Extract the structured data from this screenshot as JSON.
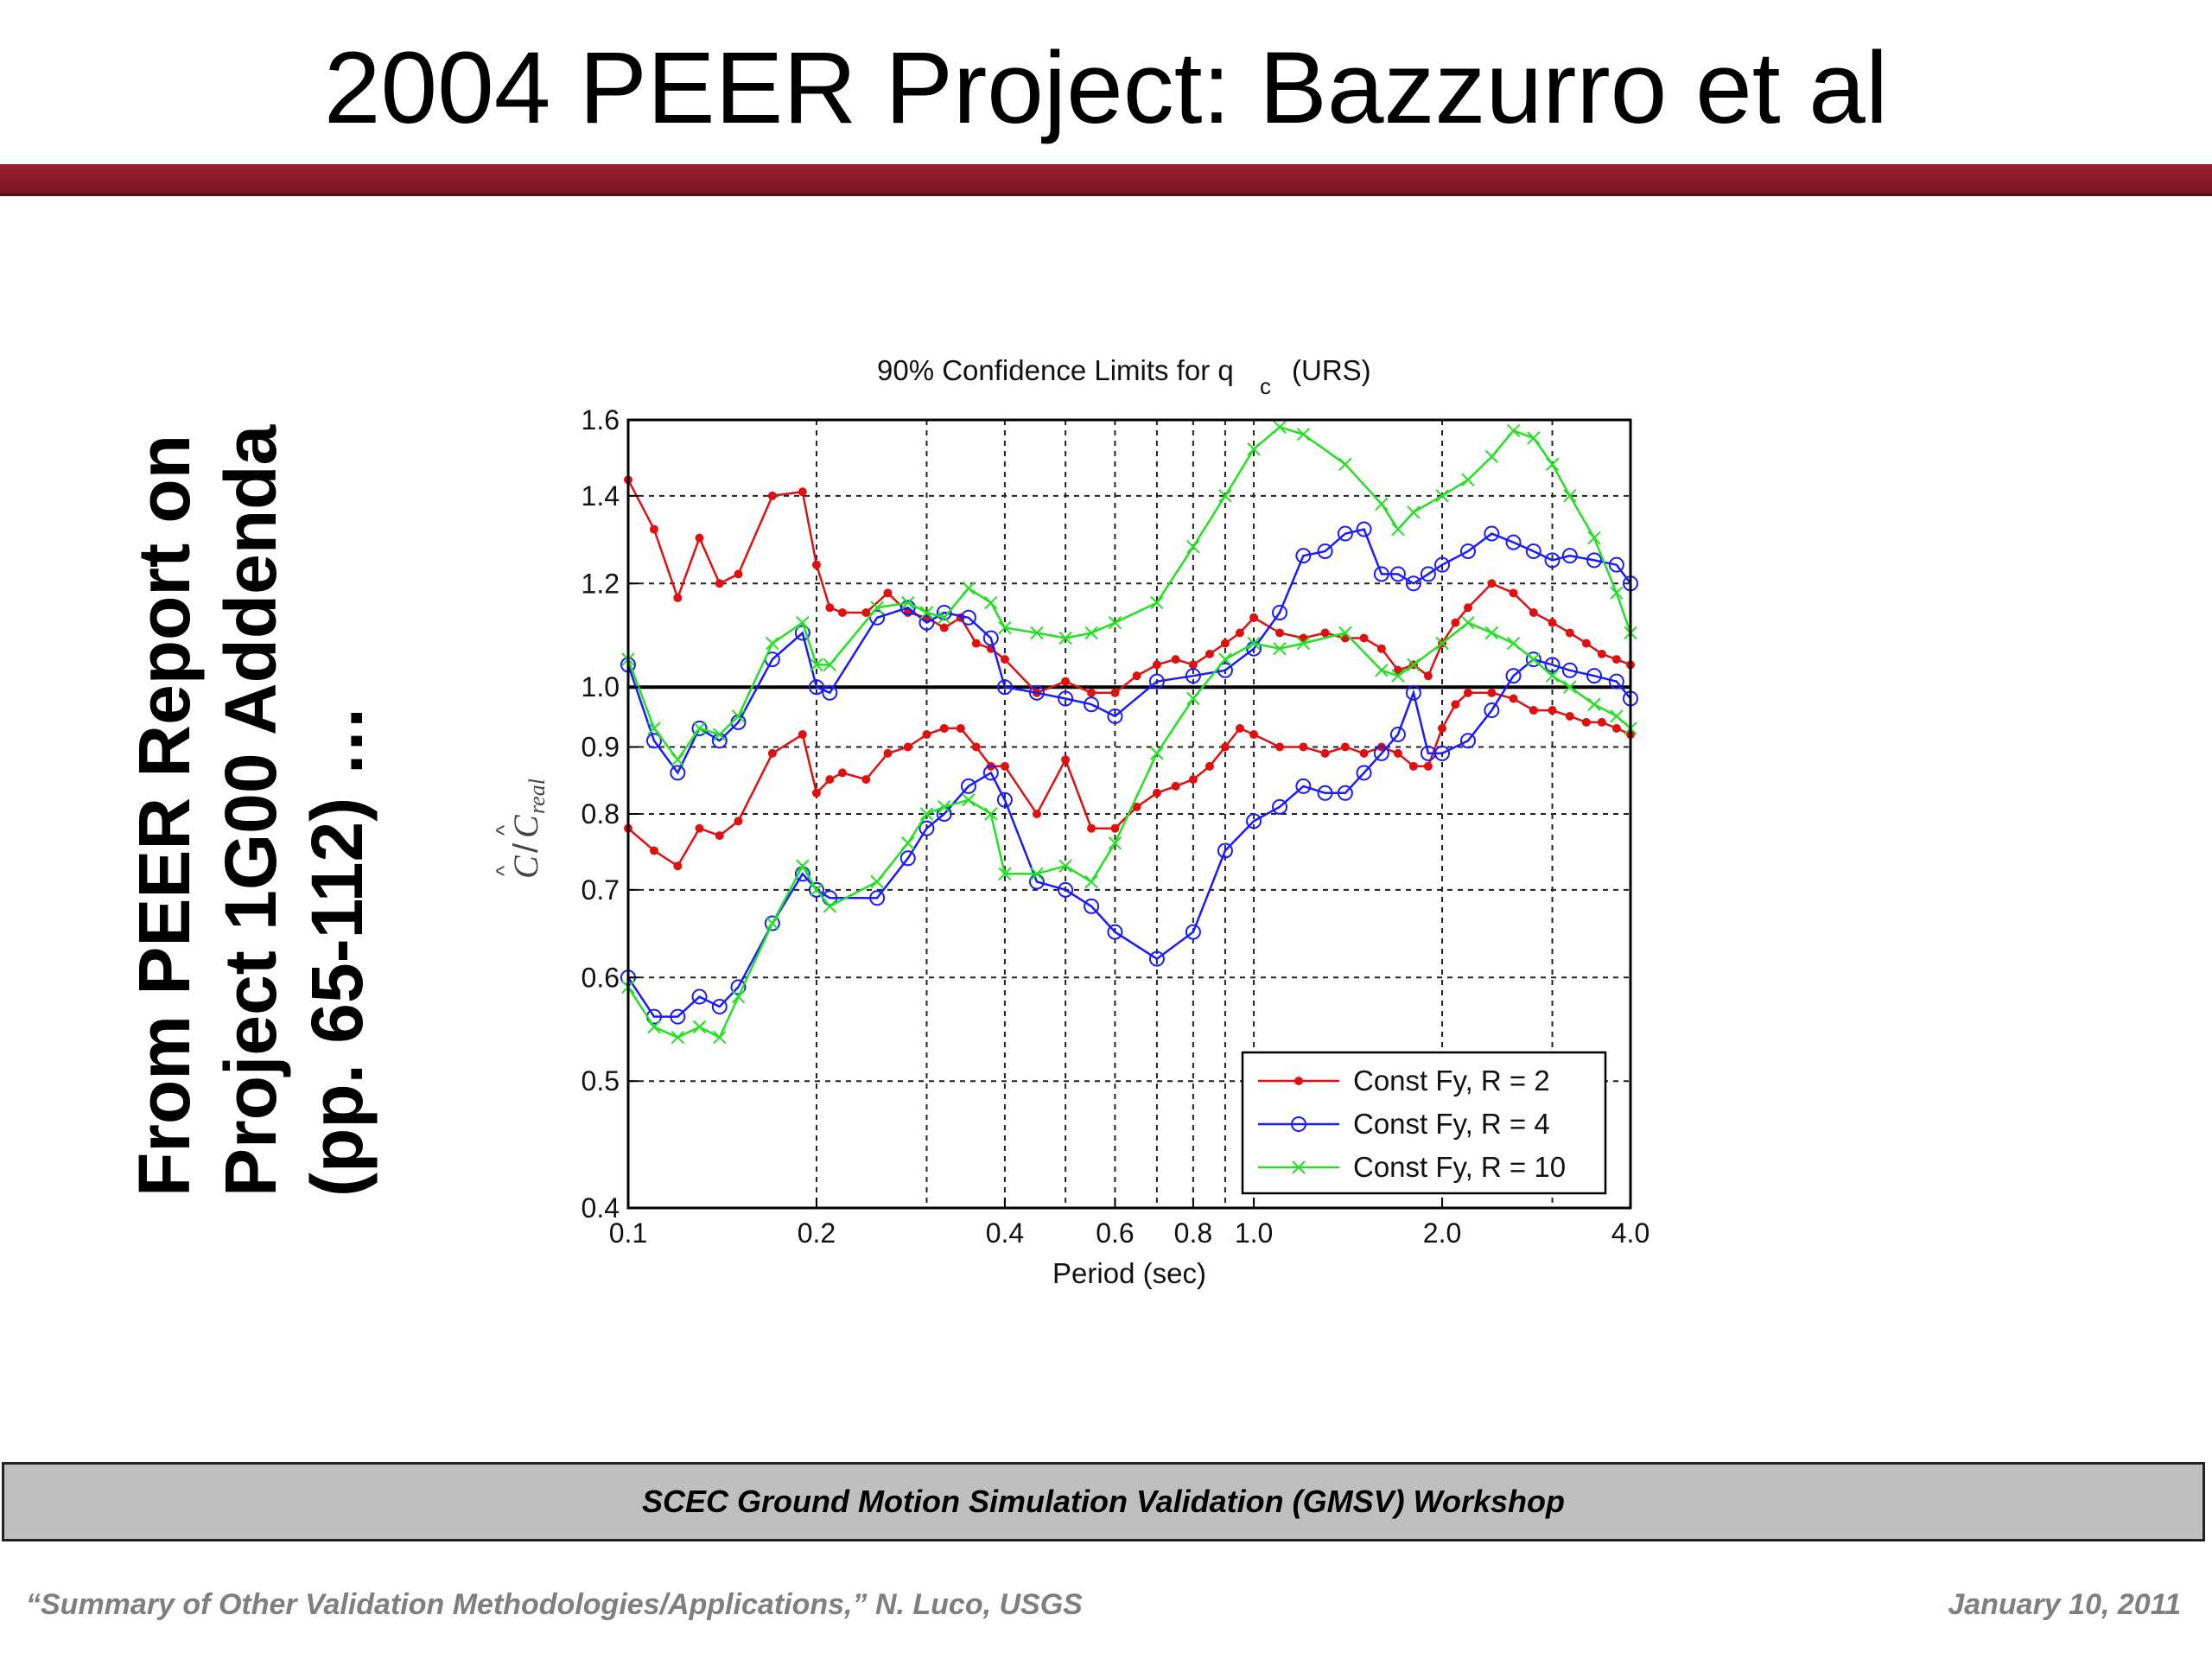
{
  "slide": {
    "title": "2004 PEER Project: Bazzurro et al",
    "side_note_lines": [
      "From PEER Report on",
      "Project 1G00 Addenda",
      "(pp. 65-112) …"
    ],
    "footer_banner": "SCEC Ground Motion Simulation Validation (GMSV) Workshop",
    "footer_left": "“Summary of Other Validation Methodologies/Applications,” N. Luco, USGS",
    "footer_right": "January 10, 2011",
    "accent_color": "#8b1a28"
  },
  "chart_data": {
    "type": "line",
    "title_main": "90% Confidence Limits for q",
    "title_sub": "c",
    "title_suffix": "(URS)",
    "xlabel": "Period (sec)",
    "ylabel_hat_c": "C",
    "ylabel_hat_c_real": "C",
    "ylabel_sub": "real",
    "xscale": "log",
    "yscale": "log",
    "xlim": [
      0.1,
      4.0
    ],
    "ylim": [
      0.4,
      1.6
    ],
    "xticks": [
      0.1,
      0.2,
      0.4,
      0.6,
      0.8,
      1.0,
      2.0,
      4.0
    ],
    "xtick_labels": [
      "0.1",
      "0.2",
      "0.4",
      "0.6",
      "0.8",
      "1.0",
      "2.0",
      "4.0"
    ],
    "yticks": [
      0.4,
      0.5,
      0.6,
      0.7,
      0.8,
      0.9,
      1.0,
      1.2,
      1.4,
      1.6
    ],
    "ytick_labels": [
      "0.4",
      "0.5",
      "0.6",
      "0.7",
      "0.8",
      "0.9",
      "1.0",
      "1.2",
      "1.4",
      "1.6"
    ],
    "x_grid": [
      0.2,
      0.3,
      0.4,
      0.5,
      0.6,
      0.7,
      0.8,
      0.9,
      1.0,
      2.0,
      3.0
    ],
    "y_grid": [
      0.5,
      0.6,
      0.7,
      0.8,
      0.9,
      1.0,
      1.2,
      1.4
    ],
    "grid": true,
    "reference_line": 1.0,
    "legend_position": "bottom-right",
    "x": [
      0.1,
      0.11,
      0.12,
      0.13,
      0.14,
      0.15,
      0.17,
      0.19,
      0.2,
      0.21,
      0.22,
      0.24,
      0.26,
      0.28,
      0.3,
      0.32,
      0.34,
      0.36,
      0.38,
      0.4,
      0.45,
      0.5,
      0.55,
      0.6,
      0.65,
      0.7,
      0.75,
      0.8,
      0.85,
      0.9,
      0.95,
      1.0,
      1.1,
      1.2,
      1.3,
      1.4,
      1.5,
      1.6,
      1.7,
      1.8,
      1.9,
      2.0,
      2.1,
      2.2,
      2.4,
      2.6,
      2.8,
      3.0,
      3.2,
      3.4,
      3.6,
      3.8,
      4.0
    ],
    "series": [
      {
        "name": "Const Fy, R = 2",
        "color": "#e01010",
        "marker": "dot",
        "upper": [
          1.44,
          1.32,
          1.17,
          1.3,
          1.2,
          1.22,
          1.4,
          1.41,
          1.24,
          1.15,
          1.14,
          1.14,
          1.18,
          1.14,
          1.13,
          1.11,
          1.13,
          1.08,
          1.07,
          1.05,
          0.99,
          1.01,
          0.99,
          0.99,
          1.02,
          1.04,
          1.05,
          1.04,
          1.06,
          1.08,
          1.1,
          1.13,
          1.1,
          1.09,
          1.1,
          1.09,
          1.09,
          1.07,
          1.03,
          1.04,
          1.02,
          1.08,
          1.12,
          1.15,
          1.2,
          1.18,
          1.14,
          1.12,
          1.1,
          1.08,
          1.06,
          1.05,
          1.04
        ],
        "lower": [
          0.78,
          0.75,
          0.73,
          0.78,
          0.77,
          0.79,
          0.89,
          0.92,
          0.83,
          0.85,
          0.86,
          0.85,
          0.89,
          0.9,
          0.92,
          0.93,
          0.93,
          0.9,
          0.87,
          0.87,
          0.8,
          0.88,
          0.78,
          0.78,
          0.81,
          0.83,
          0.84,
          0.85,
          0.87,
          0.9,
          0.93,
          0.92,
          0.9,
          0.9,
          0.89,
          0.9,
          0.89,
          0.9,
          0.89,
          0.87,
          0.87,
          0.93,
          0.97,
          0.99,
          0.99,
          0.98,
          0.96,
          0.96,
          0.95,
          0.94,
          0.94,
          0.93,
          0.92
        ]
      },
      {
        "name": "Const Fy, R = 4",
        "color": "#1a1aff",
        "marker": "circle",
        "upper": [
          1.04,
          0.91,
          0.86,
          0.93,
          0.91,
          0.94,
          1.05,
          1.1,
          1.0,
          0.99,
          1.13,
          1.15,
          1.12,
          1.14,
          1.13,
          1.09,
          1.0,
          0.99,
          0.98,
          0.97,
          0.95,
          1.01,
          1.02,
          1.03,
          1.07,
          1.14,
          1.26,
          1.27,
          1.31,
          1.32,
          1.22,
          1.22,
          1.2,
          1.22,
          1.24,
          1.27,
          1.31,
          1.29,
          1.27,
          1.25,
          1.26,
          1.25,
          1.24,
          1.2
        ],
        "lower": [
          0.6,
          0.56,
          0.56,
          0.58,
          0.57,
          0.59,
          0.66,
          0.72,
          0.7,
          0.69,
          0.69,
          0.74,
          0.78,
          0.8,
          0.84,
          0.86,
          0.82,
          0.71,
          0.7,
          0.68,
          0.65,
          0.62,
          0.65,
          0.75,
          0.79,
          0.81,
          0.84,
          0.83,
          0.83,
          0.86,
          0.89,
          0.92,
          0.99,
          0.89,
          0.89,
          0.91,
          0.96,
          1.02,
          1.05,
          1.04,
          1.03,
          1.02,
          1.01,
          0.98
        ],
        "x_subset": [
          0.1,
          0.11,
          0.12,
          0.13,
          0.14,
          0.15,
          0.17,
          0.19,
          0.2,
          0.21,
          0.25,
          0.28,
          0.3,
          0.32,
          0.35,
          0.38,
          0.4,
          0.45,
          0.5,
          0.55,
          0.6,
          0.7,
          0.8,
          0.9,
          1.0,
          1.1,
          1.2,
          1.3,
          1.4,
          1.5,
          1.6,
          1.7,
          1.8,
          1.9,
          2.0,
          2.2,
          2.4,
          2.6,
          2.8,
          3.0,
          3.2,
          3.5,
          3.8,
          4.0
        ]
      },
      {
        "name": "Const Fy, R = 10",
        "color": "#22e022",
        "marker": "x",
        "upper": [
          1.05,
          0.93,
          0.88,
          0.93,
          0.92,
          0.95,
          1.08,
          1.12,
          1.04,
          1.04,
          1.15,
          1.16,
          1.14,
          1.13,
          1.19,
          1.16,
          1.11,
          1.1,
          1.09,
          1.1,
          1.12,
          1.16,
          1.28,
          1.4,
          1.52,
          1.58,
          1.56,
          1.48,
          1.38,
          1.32,
          1.36,
          1.4,
          1.44,
          1.5,
          1.57,
          1.55,
          1.48,
          1.4,
          1.3,
          1.18,
          1.1
        ],
        "lower": [
          0.59,
          0.55,
          0.54,
          0.55,
          0.54,
          0.58,
          0.66,
          0.73,
          0.7,
          0.68,
          0.71,
          0.76,
          0.8,
          0.81,
          0.82,
          0.8,
          0.72,
          0.72,
          0.73,
          0.71,
          0.76,
          0.89,
          0.98,
          1.05,
          1.08,
          1.07,
          1.08,
          1.1,
          1.03,
          1.02,
          1.04,
          1.08,
          1.12,
          1.1,
          1.08,
          1.05,
          1.02,
          1.0,
          0.97,
          0.95,
          0.93
        ],
        "x_subset": [
          0.1,
          0.11,
          0.12,
          0.13,
          0.14,
          0.15,
          0.17,
          0.19,
          0.2,
          0.21,
          0.25,
          0.28,
          0.3,
          0.32,
          0.35,
          0.38,
          0.4,
          0.45,
          0.5,
          0.55,
          0.6,
          0.7,
          0.8,
          0.9,
          1.0,
          1.1,
          1.2,
          1.4,
          1.6,
          1.7,
          1.8,
          2.0,
          2.2,
          2.4,
          2.6,
          2.8,
          3.0,
          3.2,
          3.5,
          3.8,
          4.0
        ]
      }
    ]
  }
}
